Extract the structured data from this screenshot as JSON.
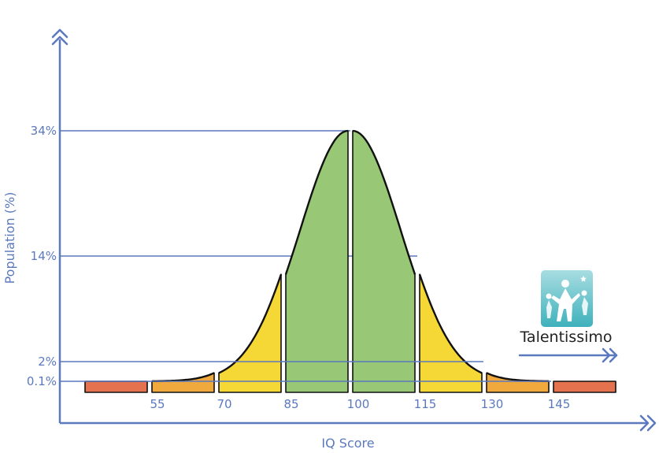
{
  "chart_data": {
    "type": "area",
    "xlabel": "IQ Score",
    "ylabel": "Population (%)",
    "x_ticks": [
      "55",
      "70",
      "85",
      "100",
      "115",
      "130",
      "145"
    ],
    "y_ticks": [
      "34%",
      "14%",
      "2%",
      "0.1%"
    ],
    "segments": [
      {
        "from": 40,
        "to": 55,
        "percent": 0.1,
        "color": "#e5724f"
      },
      {
        "from": 55,
        "to": 70,
        "percent": 2,
        "color": "#f0a93c"
      },
      {
        "from": 70,
        "to": 85,
        "percent": 14,
        "color": "#f5d835"
      },
      {
        "from": 85,
        "to": 100,
        "percent": 34,
        "color": "#98c875"
      },
      {
        "from": 100,
        "to": 115,
        "percent": 34,
        "color": "#98c875"
      },
      {
        "from": 115,
        "to": 130,
        "percent": 14,
        "color": "#f5d835"
      },
      {
        "from": 130,
        "to": 145,
        "percent": 2,
        "color": "#f0a93c"
      },
      {
        "from": 145,
        "to": 160,
        "percent": 0.1,
        "color": "#e5724f"
      }
    ],
    "axis_color": "#5b79bd",
    "grid": false,
    "legend": "none"
  },
  "brand": {
    "name": "Talentissimo",
    "logo_icon": "children-figures-logo-icon",
    "arrow_icon": "double-chevron-right-icon",
    "accent": "#5bbfc7"
  }
}
